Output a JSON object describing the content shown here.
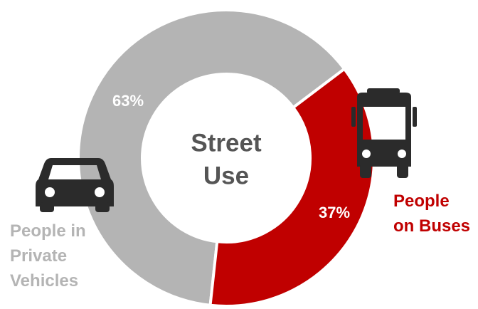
{
  "chart_data": {
    "type": "donut",
    "center_label": [
      "Street",
      "Use"
    ],
    "categories": [
      "People in Private Vehicles",
      "People on Buses"
    ],
    "values": [
      63,
      37
    ],
    "value_labels": [
      "63%",
      "37%"
    ],
    "colors": [
      "#b4b4b4",
      "#c00000"
    ]
  }
}
